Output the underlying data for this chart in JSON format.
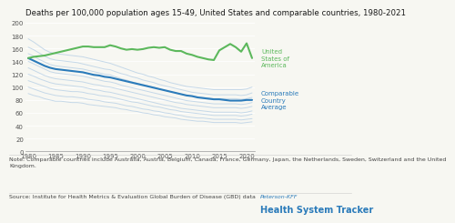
{
  "title": "Deaths per 100,000 population ages 15-49, United States and comparable countries, 1980-2021",
  "years": [
    1980,
    1981,
    1982,
    1983,
    1984,
    1985,
    1986,
    1987,
    1988,
    1989,
    1990,
    1991,
    1992,
    1993,
    1994,
    1995,
    1996,
    1997,
    1998,
    1999,
    2000,
    2001,
    2002,
    2003,
    2004,
    2005,
    2006,
    2007,
    2008,
    2009,
    2010,
    2011,
    2012,
    2013,
    2014,
    2015,
    2016,
    2017,
    2018,
    2019,
    2020,
    2021
  ],
  "usa": [
    145,
    147,
    148,
    149,
    151,
    153,
    155,
    157,
    159,
    161,
    163,
    163,
    162,
    162,
    162,
    165,
    163,
    160,
    158,
    159,
    158,
    159,
    161,
    162,
    161,
    162,
    158,
    156,
    156,
    152,
    150,
    147,
    145,
    143,
    142,
    157,
    162,
    167,
    162,
    155,
    168,
    145
  ],
  "comparable_avg": [
    145,
    141,
    137,
    133,
    130,
    128,
    127,
    126,
    125,
    124,
    123,
    121,
    119,
    118,
    116,
    115,
    113,
    111,
    109,
    107,
    105,
    103,
    101,
    99,
    97,
    95,
    93,
    91,
    89,
    87,
    86,
    84,
    83,
    82,
    81,
    81,
    80,
    79,
    79,
    79,
    80,
    80
  ],
  "peer_lines": [
    [
      175,
      170,
      164,
      158,
      154,
      152,
      151,
      150,
      149,
      148,
      147,
      145,
      143,
      141,
      139,
      137,
      134,
      131,
      128,
      125,
      122,
      120,
      117,
      115,
      112,
      110,
      107,
      105,
      103,
      101,
      100,
      99,
      98,
      97,
      96,
      96,
      96,
      96,
      96,
      96,
      97,
      100
    ],
    [
      162,
      158,
      153,
      148,
      144,
      142,
      141,
      140,
      139,
      138,
      136,
      134,
      132,
      130,
      128,
      127,
      124,
      121,
      119,
      116,
      114,
      111,
      109,
      107,
      104,
      102,
      100,
      98,
      96,
      94,
      92,
      91,
      90,
      89,
      88,
      88,
      88,
      88,
      88,
      87,
      88,
      91
    ],
    [
      152,
      148,
      143,
      139,
      135,
      133,
      132,
      131,
      130,
      129,
      128,
      126,
      124,
      122,
      120,
      119,
      116,
      113,
      111,
      108,
      106,
      104,
      102,
      100,
      97,
      95,
      93,
      91,
      89,
      87,
      86,
      85,
      84,
      83,
      82,
      82,
      82,
      82,
      82,
      81,
      82,
      84
    ],
    [
      140,
      136,
      132,
      128,
      124,
      122,
      121,
      120,
      119,
      118,
      117,
      115,
      113,
      111,
      109,
      108,
      106,
      103,
      101,
      99,
      97,
      95,
      93,
      91,
      89,
      87,
      85,
      83,
      81,
      79,
      78,
      77,
      76,
      75,
      74,
      74,
      74,
      74,
      74,
      73,
      74,
      76
    ],
    [
      130,
      126,
      122,
      118,
      115,
      113,
      112,
      111,
      110,
      109,
      108,
      106,
      104,
      103,
      101,
      100,
      98,
      96,
      94,
      92,
      90,
      88,
      86,
      84,
      82,
      80,
      78,
      76,
      75,
      73,
      72,
      71,
      70,
      69,
      68,
      68,
      68,
      68,
      68,
      67,
      68,
      70
    ],
    [
      120,
      117,
      113,
      110,
      107,
      105,
      104,
      103,
      102,
      101,
      100,
      98,
      96,
      95,
      93,
      92,
      90,
      88,
      86,
      84,
      82,
      80,
      78,
      76,
      74,
      72,
      71,
      69,
      67,
      66,
      65,
      64,
      63,
      62,
      61,
      61,
      61,
      61,
      61,
      60,
      61,
      63
    ],
    [
      110,
      107,
      104,
      101,
      98,
      96,
      95,
      94,
      93,
      93,
      92,
      90,
      89,
      87,
      86,
      85,
      83,
      81,
      79,
      77,
      76,
      74,
      72,
      70,
      69,
      67,
      65,
      64,
      62,
      61,
      60,
      59,
      58,
      57,
      56,
      56,
      56,
      56,
      56,
      55,
      56,
      58
    ],
    [
      100,
      97,
      94,
      91,
      89,
      87,
      86,
      85,
      85,
      84,
      83,
      81,
      80,
      79,
      77,
      76,
      75,
      73,
      71,
      70,
      68,
      66,
      65,
      63,
      62,
      60,
      59,
      57,
      56,
      54,
      53,
      52,
      52,
      51,
      50,
      50,
      50,
      50,
      50,
      49,
      50,
      51
    ],
    [
      90,
      87,
      85,
      82,
      80,
      78,
      78,
      77,
      76,
      76,
      75,
      73,
      72,
      71,
      70,
      69,
      68,
      66,
      65,
      63,
      62,
      60,
      59,
      57,
      56,
      54,
      53,
      52,
      50,
      49,
      48,
      47,
      47,
      46,
      45,
      45,
      45,
      45,
      45,
      44,
      45,
      46
    ]
  ],
  "usa_color": "#5cb85c",
  "avg_color": "#2b7bba",
  "peer_color": "#c5d8e8",
  "ylim": [
    0,
    200
  ],
  "yticks": [
    0,
    20,
    40,
    60,
    80,
    100,
    120,
    140,
    160,
    180,
    200
  ],
  "xticks": [
    1980,
    1985,
    1990,
    1995,
    2000,
    2005,
    2010,
    2015,
    2020
  ],
  "note": "Note: Comparable countries include Australia, Austria, Belgium, Canada, France, Germany, Japan, the Netherlands, Sweden, Switzerland and the United\nKingdom.",
  "source": "Source: Institute for Health Metrics & Evaluation Global Burden of Disease (GBD) data",
  "logo_line1": "Peterson-KFF",
  "logo_line2": "Health System Tracker",
  "bg_color": "#f7f7f2",
  "title_fontsize": 6.2,
  "label_fontsize": 5.0,
  "note_fontsize": 4.5,
  "source_fontsize": 4.5,
  "logo1_fontsize": 4.5,
  "logo2_fontsize": 7.0,
  "tick_fontsize": 5.0,
  "usa_label": "United\nStates of\nAmerica",
  "avg_label": "Comparable\nCountry\nAverage"
}
